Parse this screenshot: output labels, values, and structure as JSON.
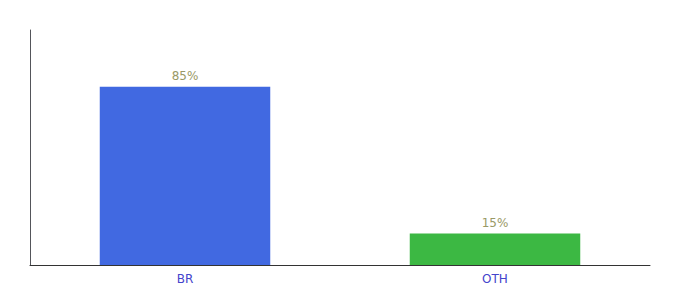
{
  "chart_data": {
    "type": "bar",
    "categories": [
      "BR",
      "OTH"
    ],
    "values": [
      85,
      15
    ],
    "value_labels": [
      "85%",
      "15%"
    ],
    "colors": [
      "#4169e1",
      "#3cb843"
    ],
    "ylim": [
      0,
      112
    ],
    "data_labels": true,
    "tick_labels": "x",
    "grid": false
  }
}
